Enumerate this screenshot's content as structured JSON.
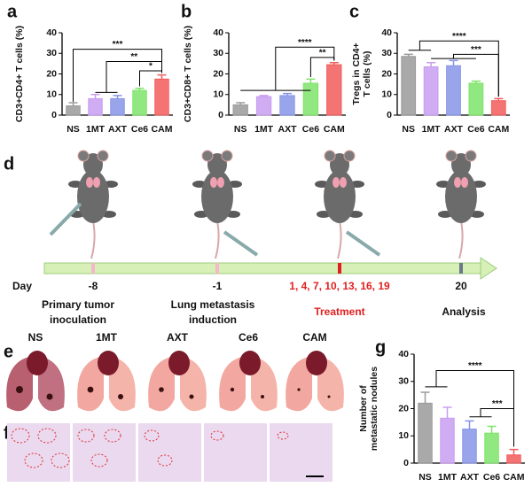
{
  "chart_data": [
    {
      "type": "bar",
      "panel": "a",
      "ylabel": [
        "CD3+CD4+ T cells (%)"
      ],
      "categories": [
        "NS",
        "1MT",
        "AXT",
        "Ce6",
        "CAM"
      ],
      "values": [
        4.5,
        8,
        8,
        12,
        17.5
      ],
      "errors": [
        1.5,
        2,
        1.5,
        1,
        2
      ],
      "colors": [
        "#9a9a9a",
        "#c89ef0",
        "#8795e8",
        "#7ee36a",
        "#f25c5c"
      ],
      "ylim": [
        0,
        40
      ],
      "yticks": [
        0,
        10,
        20,
        30,
        40
      ],
      "annotations": [
        "***",
        "**",
        "*"
      ]
    },
    {
      "type": "bar",
      "panel": "b",
      "ylabel": [
        "CD3+CD8+ T cells (%)"
      ],
      "categories": [
        "NS",
        "1MT",
        "AXT",
        "Ce6",
        "CAM"
      ],
      "values": [
        5,
        9,
        9.5,
        15.5,
        24.5
      ],
      "errors": [
        1,
        0.5,
        1,
        2,
        1
      ],
      "colors": [
        "#9a9a9a",
        "#c89ef0",
        "#8795e8",
        "#7ee36a",
        "#f25c5c"
      ],
      "ylim": [
        0,
        40
      ],
      "yticks": [
        0,
        10,
        20,
        30,
        40
      ],
      "annotations": [
        "****",
        "**"
      ]
    },
    {
      "type": "bar",
      "panel": "c",
      "ylabel": [
        "Tregs in CD4+",
        "T cells  (%)"
      ],
      "categories": [
        "NS",
        "1MT",
        "AXT",
        "Ce6",
        "CAM"
      ],
      "values": [
        28.5,
        23.5,
        24,
        15.5,
        7
      ],
      "errors": [
        1,
        2,
        2.5,
        1,
        1
      ],
      "colors": [
        "#9a9a9a",
        "#c89ef0",
        "#8795e8",
        "#7ee36a",
        "#f25c5c"
      ],
      "ylim": [
        0,
        40
      ],
      "yticks": [
        0,
        10,
        20,
        30,
        40
      ],
      "annotations": [
        "****",
        "***"
      ]
    },
    {
      "type": "bar",
      "panel": "g",
      "ylabel": [
        "Number of",
        "metastatic nodules"
      ],
      "categories": [
        "NS",
        "1MT",
        "AXT",
        "Ce6",
        "CAM"
      ],
      "values": [
        22,
        16.5,
        12.5,
        11,
        3
      ],
      "errors": [
        4,
        4,
        3,
        2.5,
        2
      ],
      "colors": [
        "#9a9a9a",
        "#c89ef0",
        "#8795e8",
        "#7ee36a",
        "#f25c5c"
      ],
      "ylim": [
        0,
        40
      ],
      "yticks": [
        0,
        10,
        20,
        30,
        40
      ],
      "annotations": [
        "****",
        "***"
      ]
    }
  ],
  "timeline": {
    "panel": "d",
    "day_label": "Day",
    "steps": [
      {
        "day": "-8",
        "label": [
          "Primary tumor",
          "inoculation"
        ]
      },
      {
        "day": "-1",
        "label": [
          "Lung metastasis",
          "induction"
        ]
      },
      {
        "day": "1, 4, 7, 10, 13, 16, 19",
        "label": [
          "Treatment"
        ]
      },
      {
        "day": "20",
        "label": [
          "Analysis"
        ]
      }
    ]
  },
  "photos": {
    "panel": "e",
    "labels": [
      "NS",
      "1MT",
      "AXT",
      "Ce6",
      "CAM"
    ]
  },
  "histology": {
    "panel": "f"
  }
}
